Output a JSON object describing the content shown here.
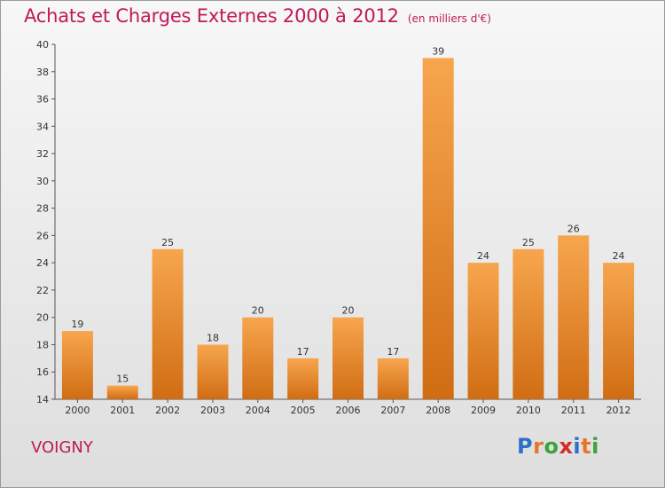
{
  "header": {
    "title": "Achats et Charges Externes 2000 à 2012",
    "subtitle": "(en milliers d'€)"
  },
  "footer": {
    "town": "VOIGNY",
    "logo_letters": [
      "P",
      "r",
      "o",
      "x",
      "i",
      "t",
      "i"
    ],
    "logo_colors": [
      "#2f6fc7",
      "#e8742a",
      "#3aa43a",
      "#d62a2a",
      "#2f6fc7",
      "#e8742a",
      "#3aa43a"
    ]
  },
  "colors": {
    "title": "#c0185a",
    "bar_light": "#f7a64e",
    "bar_dark": "#d06d14"
  },
  "chart_data": {
    "type": "bar",
    "title": "Achats et Charges Externes 2000 à 2012",
    "subtitle": "(en milliers d'€)",
    "categories": [
      "2000",
      "2001",
      "2002",
      "2003",
      "2004",
      "2005",
      "2006",
      "2007",
      "2008",
      "2009",
      "2010",
      "2011",
      "2012"
    ],
    "values": [
      19,
      15,
      25,
      18,
      20,
      17,
      20,
      17,
      39,
      24,
      25,
      26,
      24
    ],
    "ylim": [
      14,
      40
    ],
    "yticks": [
      14,
      16,
      18,
      20,
      22,
      24,
      26,
      28,
      30,
      32,
      34,
      36,
      38,
      40
    ],
    "grid": false,
    "legend": "none"
  }
}
